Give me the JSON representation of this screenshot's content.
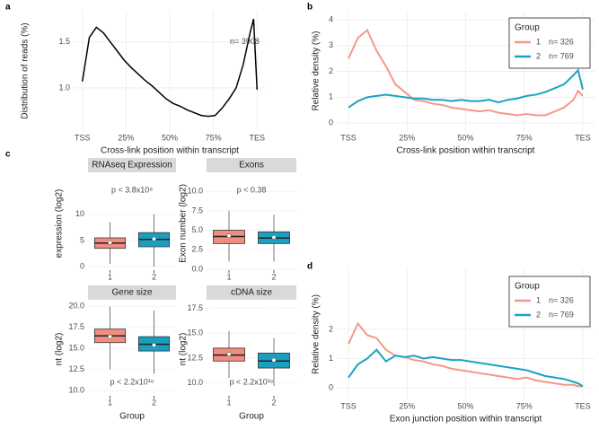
{
  "chart_data": [
    {
      "type": "line",
      "panel_label": "a",
      "ylabel": "Distribution of reads (%)",
      "xlabel": "Cross-link position within transcript",
      "annotation": "n= 3908",
      "x": [
        0,
        4,
        8,
        12,
        16,
        20,
        24,
        28,
        32,
        36,
        40,
        44,
        48,
        52,
        56,
        60,
        64,
        68,
        72,
        76,
        80,
        84,
        88,
        92,
        96,
        98,
        100
      ],
      "values": [
        1.07,
        1.55,
        1.66,
        1.6,
        1.5,
        1.4,
        1.3,
        1.22,
        1.15,
        1.08,
        1.02,
        0.95,
        0.88,
        0.83,
        0.8,
        0.76,
        0.73,
        0.7,
        0.69,
        0.7,
        0.78,
        0.88,
        1.0,
        1.25,
        1.6,
        1.75,
        0.98
      ],
      "color": "#000000",
      "grid": true,
      "xlim": [
        -5,
        105
      ],
      "xticks": [
        {
          "value": 0,
          "label": "TSS"
        },
        {
          "value": 25,
          "label": "25%"
        },
        {
          "value": 50,
          "label": "50%"
        },
        {
          "value": 75,
          "label": "75%"
        },
        {
          "value": 100,
          "label": "TES"
        }
      ],
      "ylim": [
        0.53,
        1.84
      ],
      "yticks": [
        {
          "value": 1,
          "label": "1.0"
        },
        {
          "value": 1.5,
          "label": "1.5"
        }
      ]
    },
    {
      "type": "line",
      "panel_label": "b",
      "ylabel": "Relative density (%)",
      "xlabel": "Cross-link position within transcript",
      "legend_title": "Group",
      "legend": "top-right",
      "x": [
        0,
        4,
        8,
        12,
        16,
        20,
        24,
        28,
        32,
        36,
        40,
        44,
        48,
        52,
        56,
        60,
        64,
        68,
        72,
        76,
        80,
        84,
        88,
        92,
        96,
        98,
        100
      ],
      "series": [
        {
          "name": "1",
          "n": "n= 326",
          "color": "#f4998a",
          "values": [
            2.5,
            3.3,
            3.6,
            2.8,
            2.2,
            1.5,
            1.2,
            0.9,
            0.85,
            0.75,
            0.7,
            0.6,
            0.55,
            0.5,
            0.45,
            0.5,
            0.4,
            0.35,
            0.3,
            0.35,
            0.3,
            0.3,
            0.45,
            0.6,
            0.9,
            1.25,
            1.05
          ]
        },
        {
          "name": "2",
          "n": "n= 769",
          "color": "#1ba3c6",
          "values": [
            0.6,
            0.85,
            1.0,
            1.05,
            1.1,
            1.05,
            1.0,
            0.95,
            0.95,
            0.9,
            0.9,
            0.85,
            0.9,
            0.85,
            0.85,
            0.9,
            0.8,
            0.9,
            0.95,
            1.05,
            1.1,
            1.2,
            1.35,
            1.5,
            1.85,
            2.05,
            1.3
          ]
        }
      ],
      "grid": true,
      "xlim": [
        -5,
        105
      ],
      "xticks": [
        {
          "value": 0,
          "label": "TSS"
        },
        {
          "value": 25,
          "label": "25%"
        },
        {
          "value": 50,
          "label": "50%"
        },
        {
          "value": 75,
          "label": "75%"
        },
        {
          "value": 100,
          "label": "TES"
        }
      ],
      "ylim": [
        -0.31,
        4.35
      ],
      "yticks": [
        0,
        1,
        2,
        3,
        4
      ]
    },
    {
      "type": "box",
      "panel_label": "c",
      "title": "RNAseq Expression",
      "ylabel": "expression (log2)",
      "annotation": "p < 3.8x10⁸",
      "categories": [
        "1",
        "2"
      ],
      "colors": [
        "#f08c80",
        "#1b9fc1"
      ],
      "boxes": [
        {
          "low": 0.5,
          "q1": 3.5,
          "median": 4.5,
          "q3": 5.5,
          "high": 8.5,
          "mean": 4.6
        },
        {
          "low": 0,
          "q1": 3.8,
          "median": 5.2,
          "q3": 6.5,
          "high": 10,
          "mean": 5.3
        }
      ],
      "ylim": [
        -0.5,
        17
      ],
      "yticks": [
        0,
        5,
        10
      ]
    },
    {
      "type": "box",
      "title": "Exons",
      "ylabel": "Exon number (log2)",
      "annotation": "p < 0.38",
      "categories": [
        "1",
        "2"
      ],
      "colors": [
        "#f08c80",
        "#1b9fc1"
      ],
      "boxes": [
        {
          "low": 1,
          "q1": 3.3,
          "median": 4.2,
          "q3": 5,
          "high": 7.5,
          "mean": 4.3
        },
        {
          "low": 1,
          "q1": 3.3,
          "median": 4,
          "q3": 4.8,
          "high": 7,
          "mean": 4.1
        }
      ],
      "ylim": [
        0,
        11.75
      ],
      "yticks": [
        {
          "value": 0,
          "label": "0.0"
        },
        {
          "value": 2.5,
          "label": "2.5"
        },
        {
          "value": 5,
          "label": "5.0"
        },
        {
          "value": 7.5,
          "label": "7.5"
        },
        {
          "value": 10,
          "label": "10.0"
        }
      ]
    },
    {
      "type": "box",
      "title": "Gene size",
      "ylabel": "nt (log2)",
      "xlabel": "Group",
      "annotation": "p < 2.2x10¹⁶",
      "categories": [
        "1",
        "2"
      ],
      "colors": [
        "#f08c80",
        "#1b9fc1"
      ],
      "boxes": [
        {
          "low": 12.5,
          "q1": 15.7,
          "median": 16.5,
          "q3": 17.3,
          "high": 20,
          "mean": 16.4
        },
        {
          "low": 12,
          "q1": 14.7,
          "median": 15.5,
          "q3": 16.4,
          "high": 19.5,
          "mean": 15.4
        }
      ],
      "ylim": [
        9.5,
        20.35
      ],
      "yticks": [
        {
          "value": 10,
          "label": "10.0"
        },
        {
          "value": 12.5,
          "label": "12.5"
        },
        {
          "value": 15,
          "label": "15.0"
        },
        {
          "value": 17.5,
          "label": "17.5"
        },
        {
          "value": 20,
          "label": "20.0"
        }
      ]
    },
    {
      "type": "box",
      "title": "cDNA size",
      "ylabel": "nt (log2)",
      "xlabel": "Group",
      "annotation": "p < 2.2x10¹⁶",
      "categories": [
        "1",
        "2"
      ],
      "colors": [
        "#f08c80",
        "#1b9fc1"
      ],
      "boxes": [
        {
          "low": 10.5,
          "q1": 12.2,
          "median": 12.8,
          "q3": 13.5,
          "high": 15.2,
          "mean": 12.9
        },
        {
          "low": 9.7,
          "q1": 11.5,
          "median": 12.2,
          "q3": 13,
          "high": 14.5,
          "mean": 12.3
        }
      ],
      "ylim": [
        8.8,
        18
      ],
      "yticks": [
        {
          "value": 10,
          "label": "10.0"
        },
        {
          "value": 12.5,
          "label": "12.5"
        },
        {
          "value": 15,
          "label": "15.0"
        },
        {
          "value": 17.5,
          "label": "17.5"
        }
      ]
    },
    {
      "type": "line",
      "panel_label": "d",
      "ylabel": "Relative  density (%)",
      "xlabel": "Exon junction position within transcript",
      "legend_title": "Group",
      "legend": "top-right",
      "x": [
        0,
        4,
        8,
        12,
        16,
        20,
        24,
        28,
        32,
        36,
        40,
        44,
        48,
        52,
        56,
        60,
        64,
        68,
        72,
        76,
        80,
        84,
        88,
        92,
        96,
        98,
        100
      ],
      "series": [
        {
          "name": "1",
          "n": "n= 326",
          "color": "#f4998a",
          "values": [
            1.5,
            2.2,
            1.8,
            1.7,
            1.3,
            1.1,
            1.05,
            0.95,
            0.9,
            0.8,
            0.75,
            0.65,
            0.6,
            0.55,
            0.5,
            0.45,
            0.4,
            0.35,
            0.3,
            0.35,
            0.25,
            0.2,
            0.15,
            0.1,
            0.1,
            0.05,
            0.05
          ]
        },
        {
          "name": "2",
          "n": "n= 769",
          "color": "#1ba3c6",
          "values": [
            0.35,
            0.8,
            1.0,
            1.3,
            0.9,
            1.1,
            1.05,
            1.1,
            1.0,
            1.05,
            1.0,
            0.95,
            0.95,
            0.9,
            0.85,
            0.8,
            0.75,
            0.7,
            0.65,
            0.6,
            0.5,
            0.4,
            0.35,
            0.3,
            0.2,
            0.15,
            0.05
          ]
        }
      ],
      "grid": true,
      "xlim": [
        -5,
        105
      ],
      "xticks": [
        {
          "value": 0,
          "label": "TSS"
        },
        {
          "value": 25,
          "label": "25%"
        },
        {
          "value": 50,
          "label": "50%"
        },
        {
          "value": 75,
          "label": "75%"
        },
        {
          "value": 100,
          "label": "TES"
        }
      ],
      "ylim": [
        -0.4,
        4.06
      ],
      "yticks": [
        0,
        1,
        2
      ]
    }
  ]
}
